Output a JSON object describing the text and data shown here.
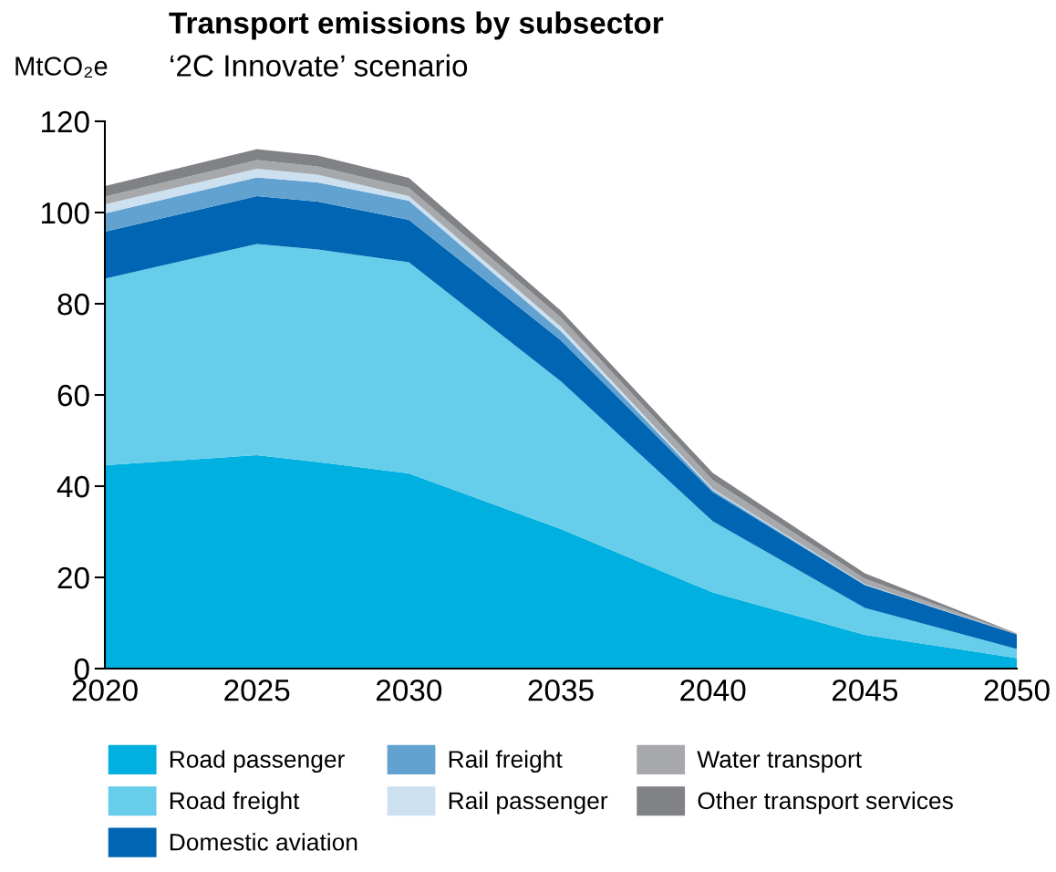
{
  "chart_data": {
    "type": "area",
    "stacked": true,
    "title": "Transport emissions by subsector",
    "subtitle": "‘2C Innovate’ scenario",
    "ylabel": "MtCO₂e",
    "x": [
      2020,
      2025,
      2027,
      2030,
      2035,
      2040,
      2045,
      2050
    ],
    "series": [
      {
        "name": "Road passenger",
        "color": "#00b0e0",
        "values": [
          44.6,
          46.8,
          45.3,
          42.8,
          30.6,
          16.7,
          7.4,
          2.3
        ]
      },
      {
        "name": "Road freight",
        "color": "#66cdea",
        "values": [
          40.9,
          46.3,
          46.6,
          46.3,
          32.4,
          15.6,
          5.9,
          2.0
        ]
      },
      {
        "name": "Domestic aviation",
        "color": "#0066b3",
        "values": [
          10.3,
          10.5,
          10.5,
          9.3,
          9.0,
          6.4,
          5.0,
          3.2
        ]
      },
      {
        "name": "Rail freight",
        "color": "#62a2d0",
        "values": [
          4.0,
          4.1,
          4.2,
          4.2,
          2.0,
          0.4,
          0.1,
          0
        ]
      },
      {
        "name": "Rail passenger",
        "color": "#cce0f0",
        "values": [
          2.0,
          1.9,
          1.7,
          1.0,
          1.0,
          0.3,
          0.1,
          0
        ]
      },
      {
        "name": "Water transport",
        "color": "#a6a8ac",
        "values": [
          1.7,
          1.9,
          1.8,
          1.8,
          2.0,
          1.9,
          1.2,
          0.1
        ]
      },
      {
        "name": "Other transport services",
        "color": "#808285",
        "values": [
          2.3,
          2.4,
          2.4,
          2.2,
          1.5,
          1.6,
          1.2,
          0.1
        ]
      }
    ],
    "xlim": [
      2020,
      2050
    ],
    "xticks": [
      2020,
      2025,
      2030,
      2035,
      2040,
      2045,
      2050
    ],
    "ylim": [
      0,
      120
    ],
    "yticks": [
      0,
      20,
      40,
      60,
      80,
      100,
      120
    ],
    "grid": false,
    "legend": "bottom"
  }
}
